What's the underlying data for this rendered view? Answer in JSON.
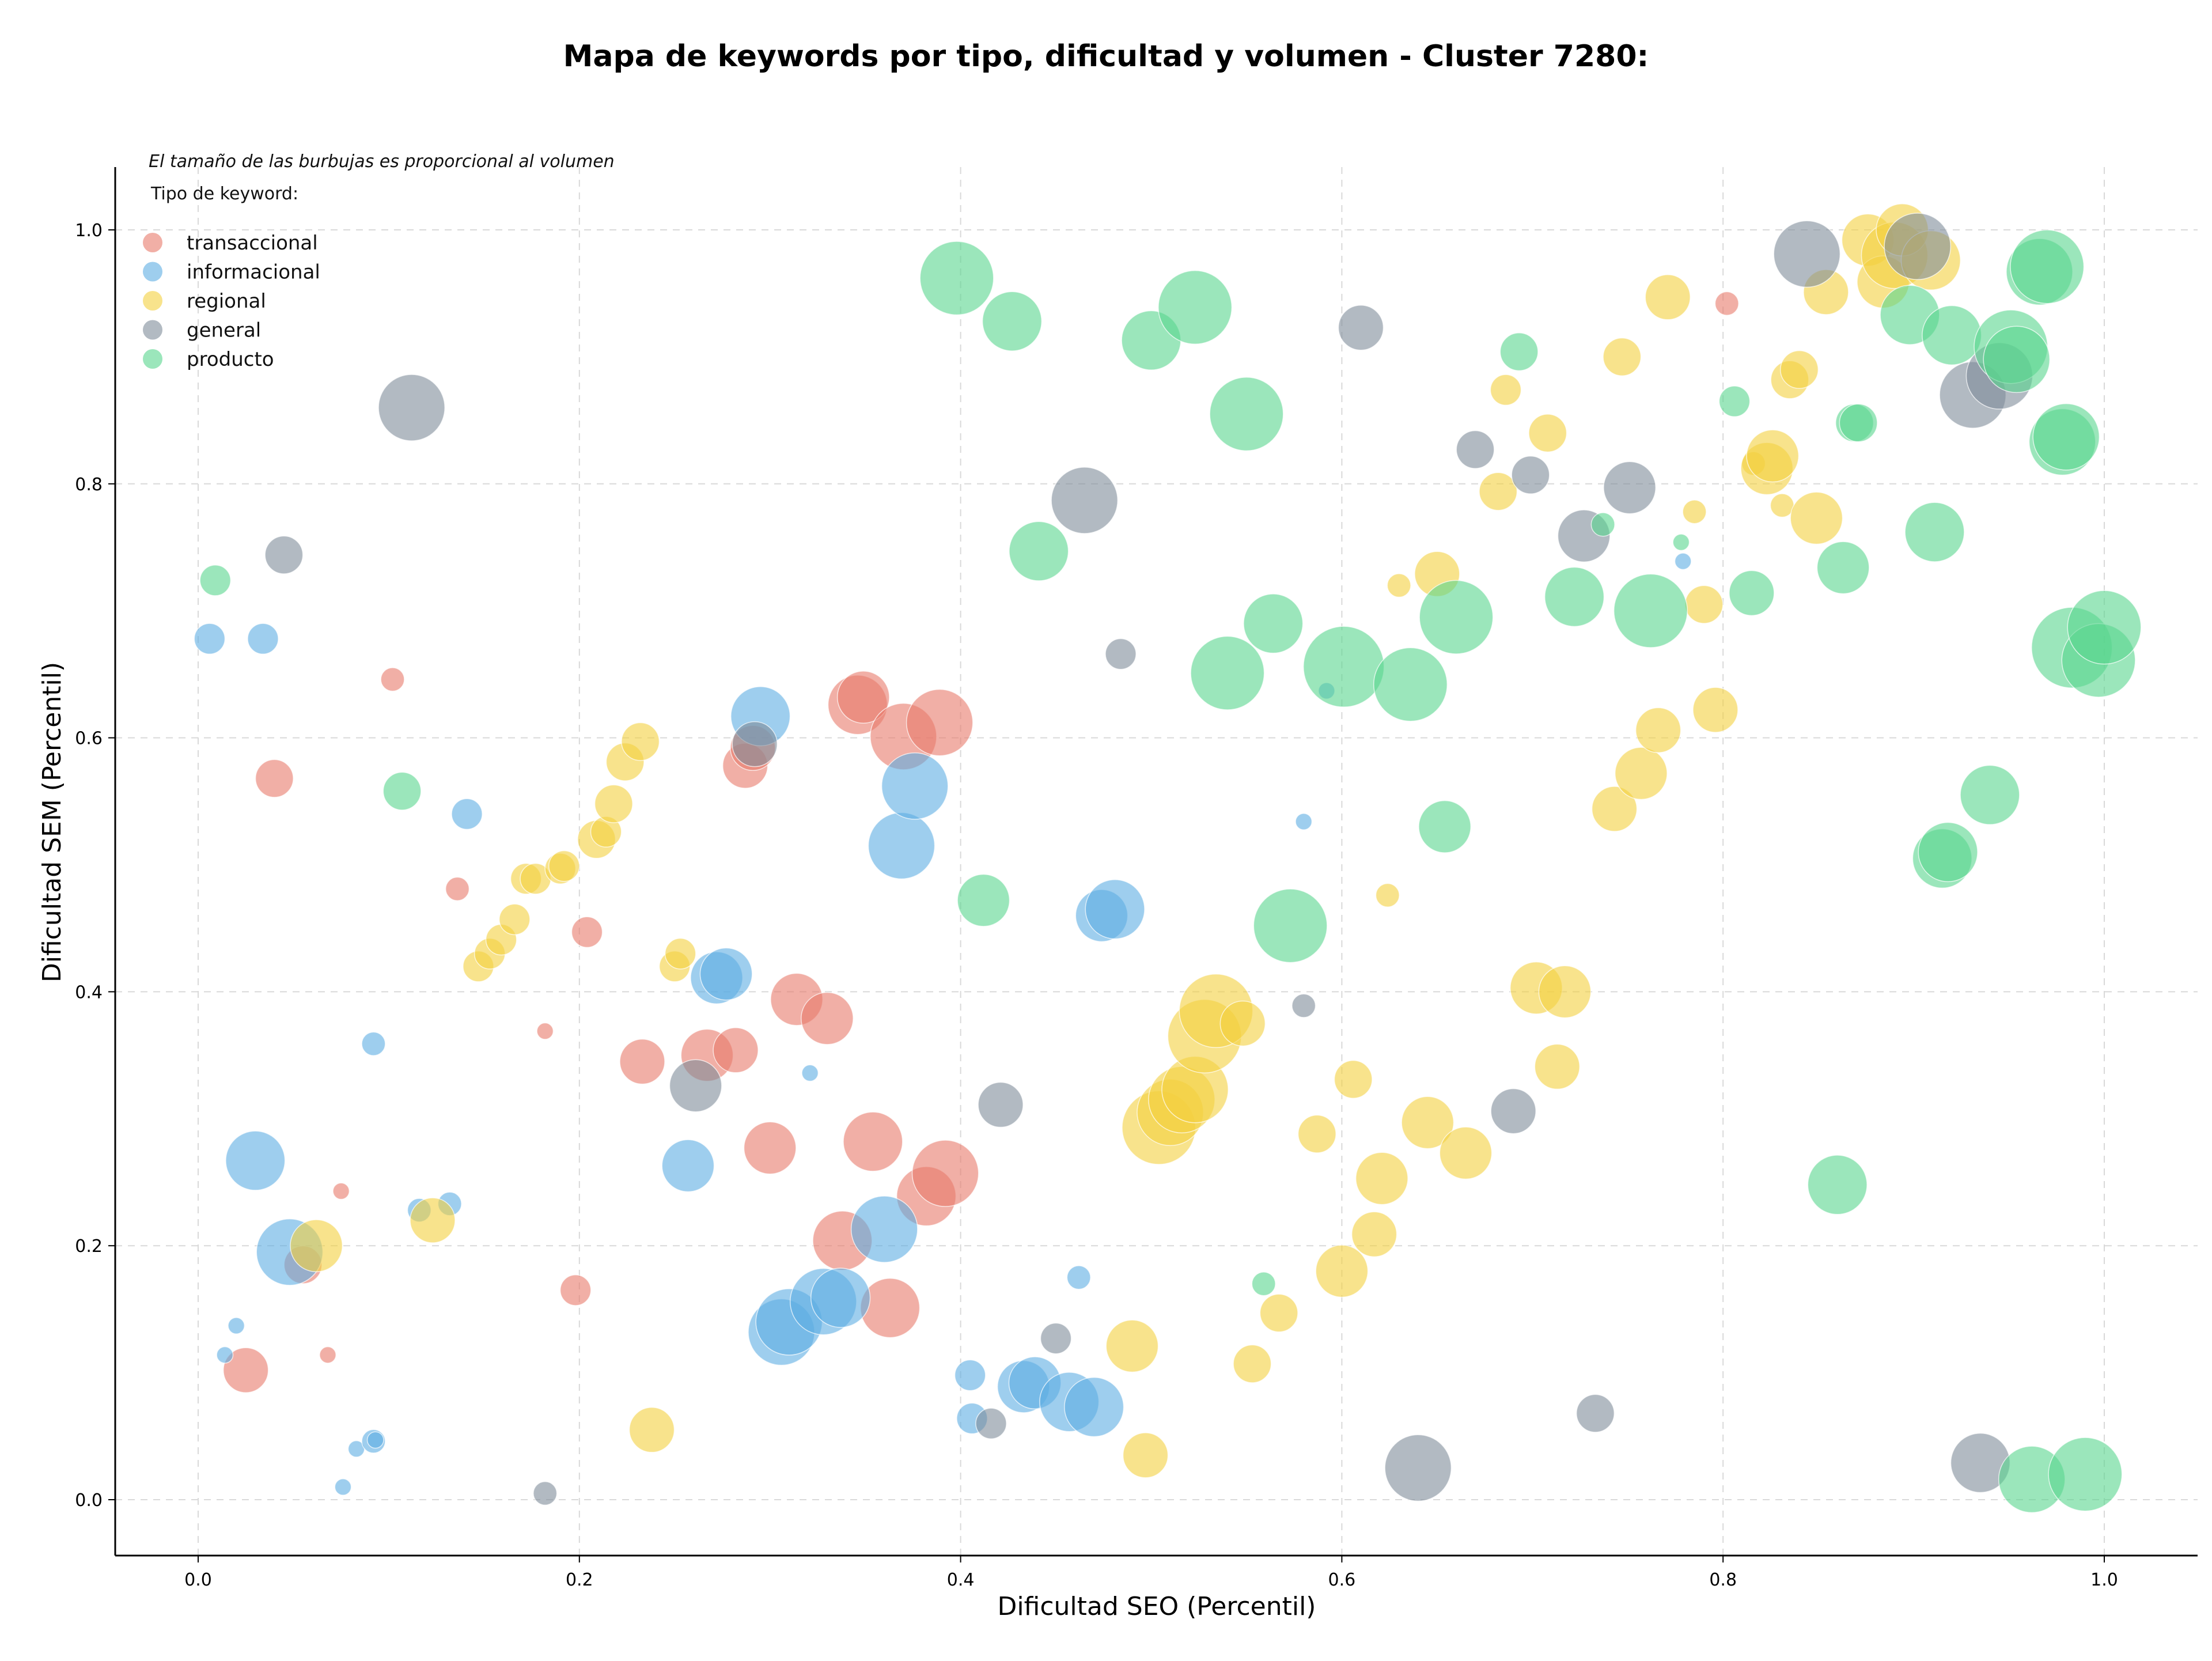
{
  "chart_data": {
    "type": "scatter",
    "title": "Mapa de keywords por tipo, dificultad y volumen - Cluster 7280:",
    "xlabel": "Dificultad SEO (Percentil)",
    "ylabel": "Dificultad SEM (Percentil)",
    "xlim": [
      -0.045,
      1.05
    ],
    "ylim": [
      -0.045,
      1.05
    ],
    "xticks": [
      "0.0",
      "0.2",
      "0.4",
      "0.6",
      "0.8",
      "1.0"
    ],
    "yticks": [
      "0.0",
      "0.2",
      "0.4",
      "0.6",
      "0.8",
      "1.0"
    ],
    "grid": true,
    "legend_position": "top-left",
    "note": "El tamaño de las burbujas es proporcional al volumen",
    "legend_title": "Tipo de keyword:",
    "series": [
      {
        "name": "transaccional",
        "color": "#E8796B",
        "points": [
          [
            0.025,
            0.102,
            5
          ],
          [
            0.04,
            0.568,
            4
          ],
          [
            0.055,
            0.185,
            4
          ],
          [
            0.068,
            0.114,
            1
          ],
          [
            0.075,
            0.243,
            1
          ],
          [
            0.102,
            0.646,
            2
          ],
          [
            0.136,
            0.481,
            2
          ],
          [
            0.182,
            0.369,
            1
          ],
          [
            0.198,
            0.165,
            3
          ],
          [
            0.204,
            0.447,
            3
          ],
          [
            0.233,
            0.345,
            5
          ],
          [
            0.267,
            0.35,
            6
          ],
          [
            0.282,
            0.354,
            5
          ],
          [
            0.287,
            0.578,
            5
          ],
          [
            0.291,
            0.592,
            5
          ],
          [
            0.3,
            0.277,
            6
          ],
          [
            0.314,
            0.394,
            6
          ],
          [
            0.33,
            0.379,
            6
          ],
          [
            0.338,
            0.204,
            7
          ],
          [
            0.346,
            0.626,
            7
          ],
          [
            0.349,
            0.632,
            6
          ],
          [
            0.354,
            0.282,
            7
          ],
          [
            0.363,
            0.151,
            7
          ],
          [
            0.37,
            0.601,
            8
          ],
          [
            0.382,
            0.239,
            7
          ],
          [
            0.389,
            0.612,
            8
          ],
          [
            0.392,
            0.257,
            8
          ],
          [
            0.802,
            0.942,
            2
          ]
        ]
      },
      {
        "name": "informacional",
        "color": "#5DADE2",
        "points": [
          [
            0.006,
            0.678,
            3
          ],
          [
            0.014,
            0.114,
            1
          ],
          [
            0.02,
            0.137,
            1
          ],
          [
            0.03,
            0.267,
            7
          ],
          [
            0.034,
            0.678,
            3
          ],
          [
            0.048,
            0.195,
            8
          ],
          [
            0.076,
            0.01,
            1
          ],
          [
            0.083,
            0.04,
            1
          ],
          [
            0.092,
            0.359,
            2
          ],
          [
            0.092,
            0.046,
            2
          ],
          [
            0.093,
            0.047,
            1
          ],
          [
            0.116,
            0.228,
            2
          ],
          [
            0.132,
            0.233,
            2
          ],
          [
            0.141,
            0.54,
            3
          ],
          [
            0.257,
            0.263,
            6
          ],
          [
            0.272,
            0.411,
            6
          ],
          [
            0.277,
            0.414,
            6
          ],
          [
            0.295,
            0.617,
            7
          ],
          [
            0.306,
            0.132,
            8
          ],
          [
            0.31,
            0.14,
            8
          ],
          [
            0.321,
            0.336,
            1
          ],
          [
            0.328,
            0.156,
            8
          ],
          [
            0.337,
            0.159,
            7
          ],
          [
            0.36,
            0.213,
            8
          ],
          [
            0.369,
            0.515,
            8
          ],
          [
            0.376,
            0.562,
            8
          ],
          [
            0.405,
            0.098,
            3
          ],
          [
            0.406,
            0.064,
            3
          ],
          [
            0.433,
            0.089,
            6
          ],
          [
            0.439,
            0.092,
            6
          ],
          [
            0.457,
            0.077,
            7
          ],
          [
            0.462,
            0.175,
            2
          ],
          [
            0.47,
            0.073,
            7
          ],
          [
            0.474,
            0.46,
            6
          ],
          [
            0.481,
            0.465,
            7
          ],
          [
            0.58,
            0.534,
            1
          ],
          [
            0.592,
            0.637,
            1
          ],
          [
            0.779,
            0.739,
            1
          ]
        ]
      },
      {
        "name": "regional",
        "color": "#F4D03F",
        "points": [
          [
            0.062,
            0.2,
            6
          ],
          [
            0.123,
            0.22,
            5
          ],
          [
            0.147,
            0.42,
            3
          ],
          [
            0.153,
            0.43,
            3
          ],
          [
            0.159,
            0.441,
            3
          ],
          [
            0.166,
            0.457,
            3
          ],
          [
            0.172,
            0.489,
            3
          ],
          [
            0.177,
            0.489,
            3
          ],
          [
            0.19,
            0.497,
            3
          ],
          [
            0.192,
            0.499,
            3
          ],
          [
            0.209,
            0.52,
            4
          ],
          [
            0.214,
            0.526,
            3
          ],
          [
            0.218,
            0.548,
            4
          ],
          [
            0.224,
            0.581,
            4
          ],
          [
            0.232,
            0.597,
            4
          ],
          [
            0.238,
            0.055,
            5
          ],
          [
            0.25,
            0.42,
            3
          ],
          [
            0.253,
            0.43,
            3
          ],
          [
            0.49,
            0.121,
            6
          ],
          [
            0.497,
            0.035,
            5
          ],
          [
            0.504,
            0.293,
            9
          ],
          [
            0.51,
            0.305,
            8
          ],
          [
            0.516,
            0.315,
            8
          ],
          [
            0.523,
            0.323,
            8
          ],
          [
            0.528,
            0.365,
            9
          ],
          [
            0.534,
            0.385,
            9
          ],
          [
            0.548,
            0.375,
            5
          ],
          [
            0.553,
            0.107,
            4
          ],
          [
            0.567,
            0.147,
            4
          ],
          [
            0.587,
            0.288,
            4
          ],
          [
            0.6,
            0.18,
            6
          ],
          [
            0.606,
            0.331,
            4
          ],
          [
            0.617,
            0.209,
            5
          ],
          [
            0.621,
            0.253,
            6
          ],
          [
            0.624,
            0.476,
            2
          ],
          [
            0.63,
            0.72,
            2
          ],
          [
            0.645,
            0.297,
            6
          ],
          [
            0.65,
            0.729,
            5
          ],
          [
            0.665,
            0.273,
            6
          ],
          [
            0.682,
            0.794,
            4
          ],
          [
            0.686,
            0.874,
            3
          ],
          [
            0.702,
            0.403,
            6
          ],
          [
            0.708,
            0.84,
            4
          ],
          [
            0.713,
            0.341,
            5
          ],
          [
            0.717,
            0.4,
            6
          ],
          [
            0.743,
            0.544,
            5
          ],
          [
            0.747,
            0.9,
            4
          ],
          [
            0.757,
            0.572,
            6
          ],
          [
            0.766,
            0.606,
            5
          ],
          [
            0.771,
            0.947,
            5
          ],
          [
            0.785,
            0.778,
            2
          ],
          [
            0.79,
            0.705,
            4
          ],
          [
            0.796,
            0.622,
            5
          ],
          [
            0.816,
            0.816,
            2
          ],
          [
            0.823,
            0.812,
            6
          ],
          [
            0.826,
            0.822,
            6
          ],
          [
            0.831,
            0.783,
            2
          ],
          [
            0.835,
            0.882,
            4
          ],
          [
            0.84,
            0.89,
            4
          ],
          [
            0.849,
            0.773,
            6
          ],
          [
            0.854,
            0.951,
            5
          ],
          [
            0.876,
            0.992,
            6
          ],
          [
            0.884,
            0.959,
            6
          ],
          [
            0.89,
            0.98,
            8
          ],
          [
            0.894,
            1.0,
            6
          ],
          [
            0.909,
            0.976,
            7
          ]
        ]
      },
      {
        "name": "general",
        "color": "#7F8C9A",
        "points": [
          [
            0.045,
            0.744,
            4
          ],
          [
            0.112,
            0.86,
            8
          ],
          [
            0.182,
            0.005,
            2
          ],
          [
            0.261,
            0.326,
            6
          ],
          [
            0.292,
            0.595,
            5
          ],
          [
            0.416,
            0.06,
            3
          ],
          [
            0.421,
            0.311,
            5
          ],
          [
            0.45,
            0.127,
            3
          ],
          [
            0.465,
            0.787,
            8
          ],
          [
            0.484,
            0.666,
            3
          ],
          [
            0.58,
            0.389,
            2
          ],
          [
            0.61,
            0.923,
            5
          ],
          [
            0.64,
            0.025,
            8
          ],
          [
            0.67,
            0.827,
            4
          ],
          [
            0.69,
            0.306,
            5
          ],
          [
            0.699,
            0.807,
            4
          ],
          [
            0.727,
            0.759,
            6
          ],
          [
            0.733,
            0.068,
            4
          ],
          [
            0.751,
            0.797,
            6
          ],
          [
            0.844,
            0.981,
            8
          ],
          [
            0.902,
            0.987,
            8
          ],
          [
            0.931,
            0.87,
            8
          ],
          [
            0.935,
            0.029,
            7
          ],
          [
            0.945,
            0.885,
            8
          ]
        ]
      },
      {
        "name": "producto",
        "color": "#58D68D",
        "points": [
          [
            0.009,
            0.724,
            3
          ],
          [
            0.107,
            0.558,
            4
          ],
          [
            0.398,
            0.962,
            9
          ],
          [
            0.412,
            0.472,
            6
          ],
          [
            0.427,
            0.928,
            7
          ],
          [
            0.441,
            0.747,
            7
          ],
          [
            0.5,
            0.913,
            7
          ],
          [
            0.523,
            0.939,
            9
          ],
          [
            0.54,
            0.651,
            9
          ],
          [
            0.55,
            0.855,
            9
          ],
          [
            0.559,
            0.17,
            2
          ],
          [
            0.564,
            0.69,
            7
          ],
          [
            0.573,
            0.452,
            9
          ],
          [
            0.601,
            0.656,
            10
          ],
          [
            0.636,
            0.642,
            9
          ],
          [
            0.654,
            0.53,
            6
          ],
          [
            0.66,
            0.695,
            9
          ],
          [
            0.693,
            0.904,
            4
          ],
          [
            0.722,
            0.711,
            7
          ],
          [
            0.737,
            0.768,
            2
          ],
          [
            0.762,
            0.7,
            9
          ],
          [
            0.778,
            0.754,
            1
          ],
          [
            0.806,
            0.865,
            3
          ],
          [
            0.815,
            0.714,
            5
          ],
          [
            0.863,
            0.734,
            6
          ],
          [
            0.86,
            0.248,
            7
          ],
          [
            0.869,
            0.848,
            4
          ],
          [
            0.871,
            0.848,
            4
          ],
          [
            0.898,
            0.933,
            7
          ],
          [
            0.911,
            0.762,
            7
          ],
          [
            0.92,
            0.917,
            7
          ],
          [
            0.915,
            0.505,
            7
          ],
          [
            0.918,
            0.51,
            7
          ],
          [
            0.94,
            0.555,
            7
          ],
          [
            0.951,
            0.908,
            9
          ],
          [
            0.954,
            0.898,
            8
          ],
          [
            0.962,
            0.016,
            8
          ],
          [
            0.966,
            0.967,
            8
          ],
          [
            0.97,
            0.971,
            9
          ],
          [
            0.978,
            0.833,
            8
          ],
          [
            0.98,
            0.837,
            8
          ],
          [
            0.983,
            0.671,
            10
          ],
          [
            0.99,
            0.02,
            9
          ],
          [
            0.997,
            0.661,
            9
          ],
          [
            1.0,
            0.687,
            9
          ]
        ]
      }
    ]
  }
}
